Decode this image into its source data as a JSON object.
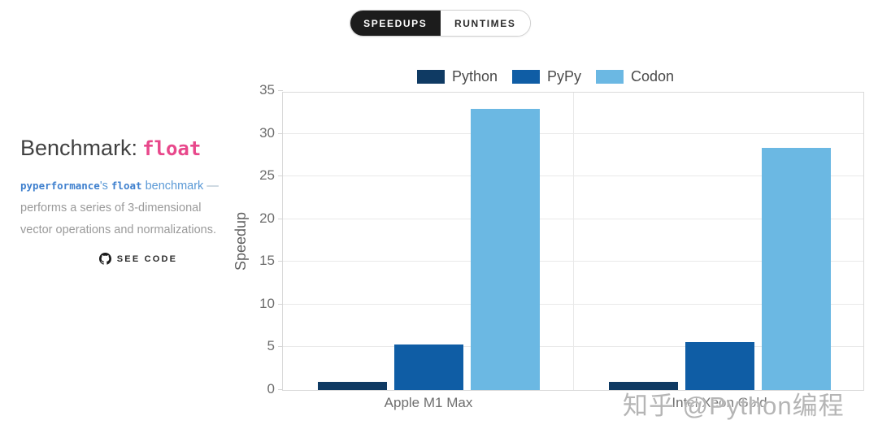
{
  "toggle": {
    "speedups_label": "SPEEDUPS",
    "runtimes_label": "RUNTIMES",
    "active": "SPEEDUPS"
  },
  "sidebar": {
    "title_label": "Benchmark:",
    "title_code": "float",
    "desc": {
      "code1": "pyperformance",
      "after_code1": "'s",
      "code2": "float",
      "link_rest": "benchmark",
      "dash": "—",
      "body_line2": "performs a series of 3-dimensional",
      "body_line3": "vector operations and normalizations."
    },
    "see_code_label": "SEE CODE",
    "see_code_icon": "github-icon"
  },
  "watermark": "知乎 @Python编程",
  "colors": {
    "python_bar": "#0f3a63",
    "pypy_bar": "#0f5da5",
    "codon_bar": "#6bb8e3",
    "toggle_active_bg": "#1c1c1c",
    "benchmark_code_pink": "#e8488b",
    "link_blue": "#5a99d6"
  },
  "chart_data": {
    "type": "bar",
    "title": "",
    "categories": [
      "Apple M1 Max",
      "Intel Xeon Gold"
    ],
    "series": [
      {
        "name": "Python",
        "color": "#0f3a63",
        "values": [
          1.0,
          1.0
        ]
      },
      {
        "name": "PyPy",
        "color": "#0f5da5",
        "values": [
          5.3,
          5.6
        ]
      },
      {
        "name": "Codon",
        "color": "#6bb8e3",
        "values": [
          32.9,
          28.3
        ]
      }
    ],
    "xlabel": "",
    "ylabel": "Speedup",
    "ylim": [
      0,
      35
    ],
    "yticks": [
      0,
      5,
      10,
      15,
      20,
      25,
      30,
      35
    ],
    "grid": true,
    "legend_position": "top"
  }
}
